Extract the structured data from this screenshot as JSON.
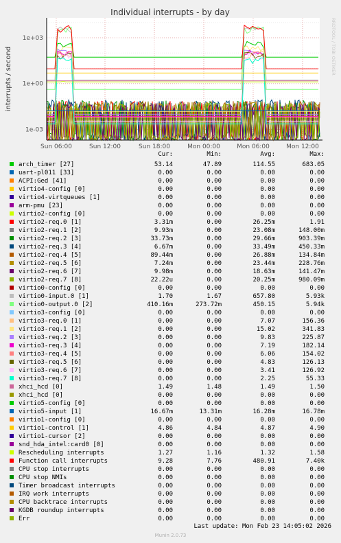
{
  "chart_data": {
    "type": "line",
    "title": "Individual interrupts - by day",
    "ylabel": "interrupts / second",
    "yscale": "log",
    "ylim": [
      0.0002,
      20000
    ],
    "y_ticks": [
      "1e+03",
      "1e+00",
      "1e-03"
    ],
    "x_ticks": [
      "Sun 06:00",
      "Sun 12:00",
      "Sun 18:00",
      "Mon 00:00",
      "Mon 06:00",
      "Mon 12:00"
    ],
    "side_label": "RRDTOOL / TOBI OETIKER",
    "grid": true,
    "columns": [
      "Cur:",
      "Min:",
      "Avg:",
      "Max:"
    ],
    "series": [
      {
        "name": "arch_timer [27]",
        "color": "#00cc00",
        "cur": "53.14",
        "min": "47.89",
        "avg": "114.55",
        "max": "683.05"
      },
      {
        "name": "uart-pl011 [33]",
        "color": "#0066b3",
        "cur": "0.00",
        "min": "0.00",
        "avg": "0.00",
        "max": "0.00"
      },
      {
        "name": "ACPI:Ged [41]",
        "color": "#ff8000",
        "cur": "0.00",
        "min": "0.00",
        "avg": "0.00",
        "max": "0.00"
      },
      {
        "name": "virtio4-config [0]",
        "color": "#ffcc00",
        "cur": "0.00",
        "min": "0.00",
        "avg": "0.00",
        "max": "0.00"
      },
      {
        "name": "virtio4-virtqueues [1]",
        "color": "#330099",
        "cur": "0.00",
        "min": "0.00",
        "avg": "0.00",
        "max": "0.00"
      },
      {
        "name": "arm-pmu [23]",
        "color": "#990099",
        "cur": "0.00",
        "min": "0.00",
        "avg": "0.00",
        "max": "0.00"
      },
      {
        "name": "virtio2-config [0]",
        "color": "#ccff00",
        "cur": "0.00",
        "min": "0.00",
        "avg": "0.00",
        "max": "0.00"
      },
      {
        "name": "virtio2-req.0 [1]",
        "color": "#ff0000",
        "cur": "3.31m",
        "min": "0.00",
        "avg": "26.25m",
        "max": "1.91"
      },
      {
        "name": "virtio2-req.1 [2]",
        "color": "#808080",
        "cur": "9.93m",
        "min": "0.00",
        "avg": "23.08m",
        "max": "148.00m"
      },
      {
        "name": "virtio2-req.2 [3]",
        "color": "#008f00",
        "cur": "33.73m",
        "min": "0.00",
        "avg": "29.66m",
        "max": "903.39m"
      },
      {
        "name": "virtio2-req.3 [4]",
        "color": "#00487d",
        "cur": "6.67m",
        "min": "0.00",
        "avg": "33.49m",
        "max": "450.33m"
      },
      {
        "name": "virtio2-req.4 [5]",
        "color": "#b35a00",
        "cur": "89.44m",
        "min": "0.00",
        "avg": "26.88m",
        "max": "134.84m"
      },
      {
        "name": "virtio2-req.5 [6]",
        "color": "#b38f00",
        "cur": "7.24m",
        "min": "0.00",
        "avg": "23.44m",
        "max": "228.76m"
      },
      {
        "name": "virtio2-req.6 [7]",
        "color": "#6b006b",
        "cur": "9.98m",
        "min": "0.00",
        "avg": "18.63m",
        "max": "141.47m"
      },
      {
        "name": "virtio2-req.7 [8]",
        "color": "#8fb300",
        "cur": "22.22u",
        "min": "0.00",
        "avg": "20.25m",
        "max": "980.09m"
      },
      {
        "name": "virtio0-config [0]",
        "color": "#b30000",
        "cur": "0.00",
        "min": "0.00",
        "avg": "0.00",
        "max": "0.00"
      },
      {
        "name": "virtio0-input.0 [1]",
        "color": "#bebebe",
        "cur": "1.70",
        "min": "1.67",
        "avg": "657.80",
        "max": "5.93k"
      },
      {
        "name": "virtio0-output.0 [2]",
        "color": "#80ff80",
        "cur": "410.16m",
        "min": "273.72m",
        "avg": "450.15",
        "max": "5.94k"
      },
      {
        "name": "virtio3-config [0]",
        "color": "#80c9ff",
        "cur": "0.00",
        "min": "0.00",
        "avg": "0.00",
        "max": "0.00"
      },
      {
        "name": "virtio3-req.0 [1]",
        "color": "#ffc080",
        "cur": "0.00",
        "min": "0.00",
        "avg": "7.07",
        "max": "156.36"
      },
      {
        "name": "virtio3-req.1 [2]",
        "color": "#ffe680",
        "cur": "0.00",
        "min": "0.00",
        "avg": "15.02",
        "max": "341.83"
      },
      {
        "name": "virtio3-req.2 [3]",
        "color": "#aa80ff",
        "cur": "0.00",
        "min": "0.00",
        "avg": "9.83",
        "max": "225.87"
      },
      {
        "name": "virtio3-req.3 [4]",
        "color": "#ee00cc",
        "cur": "0.00",
        "min": "0.00",
        "avg": "7.19",
        "max": "182.14"
      },
      {
        "name": "virtio3-req.4 [5]",
        "color": "#ff8080",
        "cur": "0.00",
        "min": "0.00",
        "avg": "6.06",
        "max": "154.02"
      },
      {
        "name": "virtio3-req.5 [6]",
        "color": "#666600",
        "cur": "0.00",
        "min": "0.00",
        "avg": "4.83",
        "max": "126.13"
      },
      {
        "name": "virtio3-req.6 [7]",
        "color": "#ffbfff",
        "cur": "0.00",
        "min": "0.00",
        "avg": "3.41",
        "max": "126.92"
      },
      {
        "name": "virtio3-req.7 [8]",
        "color": "#00ffcc",
        "cur": "0.00",
        "min": "0.00",
        "avg": "2.25",
        "max": "55.33"
      },
      {
        "name": "xhci_hcd [0]",
        "color": "#cc6699",
        "cur": "1.49",
        "min": "1.48",
        "avg": "1.49",
        "max": "1.50"
      },
      {
        "name": "xhci_hcd [0]",
        "color": "#999900",
        "cur": "0.00",
        "min": "0.00",
        "avg": "0.00",
        "max": "0.00"
      },
      {
        "name": "virtio5-config [0]",
        "color": "#00cc00",
        "cur": "0.00",
        "min": "0.00",
        "avg": "0.00",
        "max": "0.00"
      },
      {
        "name": "virtio5-input [1]",
        "color": "#0066b3",
        "cur": "16.67m",
        "min": "13.31m",
        "avg": "16.28m",
        "max": "16.78m"
      },
      {
        "name": "virtio1-config [0]",
        "color": "#ff8000",
        "cur": "0.00",
        "min": "0.00",
        "avg": "0.00",
        "max": "0.00"
      },
      {
        "name": "virtio1-control [1]",
        "color": "#ffcc00",
        "cur": "4.86",
        "min": "4.84",
        "avg": "4.87",
        "max": "4.90"
      },
      {
        "name": "virtio1-cursor [2]",
        "color": "#330099",
        "cur": "0.00",
        "min": "0.00",
        "avg": "0.00",
        "max": "0.00"
      },
      {
        "name": "snd_hda_intel:card0 [0]",
        "color": "#990099",
        "cur": "0.00",
        "min": "0.00",
        "avg": "0.00",
        "max": "0.00"
      },
      {
        "name": "Rescheduling interrupts",
        "color": "#ccff00",
        "cur": "1.27",
        "min": "1.16",
        "avg": "1.32",
        "max": "1.58"
      },
      {
        "name": "Function call interrupts",
        "color": "#ff0000",
        "cur": "9.28",
        "min": "7.76",
        "avg": "480.91",
        "max": "7.40k"
      },
      {
        "name": "CPU stop interrupts",
        "color": "#808080",
        "cur": "0.00",
        "min": "0.00",
        "avg": "0.00",
        "max": "0.00"
      },
      {
        "name": "CPU stop NMIs",
        "color": "#008f00",
        "cur": "0.00",
        "min": "0.00",
        "avg": "0.00",
        "max": "0.00"
      },
      {
        "name": "Timer broadcast interrupts",
        "color": "#00487d",
        "cur": "0.00",
        "min": "0.00",
        "avg": "0.00",
        "max": "0.00"
      },
      {
        "name": "IRQ work interrupts",
        "color": "#b35a00",
        "cur": "0.00",
        "min": "0.00",
        "avg": "0.00",
        "max": "0.00"
      },
      {
        "name": "CPU backtrace interrupts",
        "color": "#b38f00",
        "cur": "0.00",
        "min": "0.00",
        "avg": "0.00",
        "max": "0.00"
      },
      {
        "name": "KGDB roundup interrupts",
        "color": "#6b006b",
        "cur": "0.00",
        "min": "0.00",
        "avg": "0.00",
        "max": "0.00"
      },
      {
        "name": "Err",
        "color": "#8fb300",
        "cur": "0.00",
        "min": "0.00",
        "avg": "0.00",
        "max": "0.00"
      }
    ]
  },
  "footer": {
    "last_update": "Last update: Mon Feb 23 14:05:02 2026",
    "munin": "Munin 2.0.73"
  }
}
